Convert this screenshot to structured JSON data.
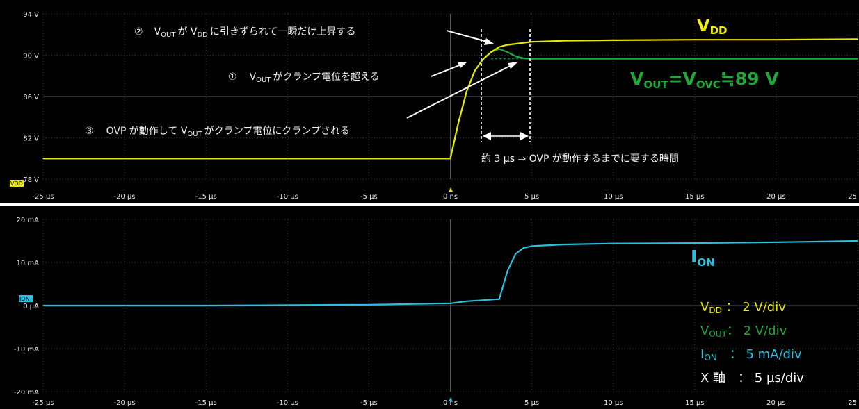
{
  "chart_data": [
    {
      "type": "line",
      "panel": "voltage",
      "y_unit": "V",
      "ylim": [
        78,
        94
      ],
      "y_ticks": [
        "94 V",
        "90 V",
        "86 V",
        "82 V",
        "78 V"
      ],
      "x_unit": "µs",
      "xlim": [
        -25,
        25
      ],
      "x_ticks": [
        "-25 µs",
        "-20 µs",
        "-15 µs",
        "-10 µs",
        "-5 µs",
        "0 ns",
        "5 µs",
        "10 µs",
        "15 µs",
        "20 µs",
        "25 µs"
      ],
      "series": [
        {
          "name": "VDD",
          "color": "#e6e600",
          "x": [
            -25,
            -10,
            0,
            0.5,
            1,
            1.5,
            2,
            2.5,
            3,
            3.5,
            4,
            4.5,
            5,
            7,
            10,
            15,
            20,
            25
          ],
          "y": [
            80.0,
            80.0,
            80.0,
            83.5,
            86.5,
            88.5,
            89.6,
            90.3,
            90.8,
            91.0,
            91.1,
            91.2,
            91.3,
            91.4,
            91.45,
            91.5,
            91.5,
            91.55
          ]
        },
        {
          "name": "VOUT",
          "color": "#22a83a",
          "x": [
            -25,
            -10,
            0,
            0.5,
            1,
            1.5,
            2,
            2.5,
            3,
            3.5,
            4,
            4.5,
            5,
            7,
            10,
            15,
            20,
            25
          ],
          "y": [
            80.0,
            80.0,
            80.0,
            83.5,
            86.5,
            88.5,
            89.6,
            90.3,
            90.6,
            90.3,
            89.9,
            89.7,
            89.65,
            89.65,
            89.65,
            89.65,
            89.65,
            89.65
          ]
        }
      ],
      "reference_line_y": 89.65
    },
    {
      "type": "line",
      "panel": "current",
      "y_unit": "mA",
      "ylim": [
        -20,
        20
      ],
      "y_ticks": [
        "20 mA",
        "10 mA",
        "0 µA",
        "-10 mA",
        "-20 mA"
      ],
      "x_unit": "µs",
      "xlim": [
        -25,
        25
      ],
      "x_ticks": [
        "-25 µs",
        "-20 µs",
        "-15 µs",
        "-10 µs",
        "-5 µs",
        "0 ns",
        "5 µs",
        "10 µs",
        "15 µs",
        "20 µs",
        "25 µs"
      ],
      "series": [
        {
          "name": "ION",
          "color": "#29c0e0",
          "x": [
            -25,
            -15,
            -5,
            0,
            1,
            3,
            3.5,
            4,
            4.5,
            5,
            7,
            10,
            15,
            20,
            25
          ],
          "y": [
            0.0,
            0.0,
            0.2,
            0.5,
            1.0,
            1.5,
            8.0,
            12.0,
            13.4,
            13.8,
            14.2,
            14.4,
            14.5,
            14.7,
            15.0
          ]
        }
      ]
    }
  ],
  "labels": {
    "vdd": {
      "main": "V",
      "sub": "DD"
    },
    "vout": {
      "main1": "V",
      "sub1": "OUT",
      "mid": "=V",
      "sub2": "OVC",
      "tail": "≒89 V"
    },
    "ion": {
      "main": "I",
      "sub": "ON"
    },
    "channel_vdd": "VDD",
    "channel_ion": "ION"
  },
  "annotations": {
    "a2": {
      "num": "②",
      "v": "V",
      "vsub": "OUT",
      "t1": "が V",
      "t1sub": "DD",
      "t2": "に引きずられて一瞬だけ上昇する"
    },
    "a1": {
      "num": "①",
      "v": "V",
      "vsub": "OUT",
      "t": "がクランプ電位を超える"
    },
    "a3": {
      "num": "③",
      "pre": "OVP が動作して V",
      "vsub": "OUT",
      "t": "がクランプ電位にクランプされる"
    },
    "delay": "約 3 µs ⇒ OVP が動作するまでに要する時間"
  },
  "scale_legend": [
    {
      "main": "V",
      "sub": "DD",
      "sep": " ：",
      "value": "2 V/div",
      "color": "#e6e600"
    },
    {
      "main": "V",
      "sub": "OUT",
      "sep": "：",
      "value": "2 V/div",
      "color": "#22a83a"
    },
    {
      "main": "I",
      "sub": "ON",
      "sep": "　：",
      "value": "5 mA/div",
      "color": "#29c0e0"
    },
    {
      "main": "X 軸",
      "sub": "",
      "sep": "　：",
      "value": "5 µs/div",
      "color": "#ffffff"
    }
  ],
  "colors": {
    "background": "#000000",
    "grid": "#3a3a3a",
    "vdd": "#e6e600",
    "vout": "#22a83a",
    "ion": "#29c0e0"
  }
}
